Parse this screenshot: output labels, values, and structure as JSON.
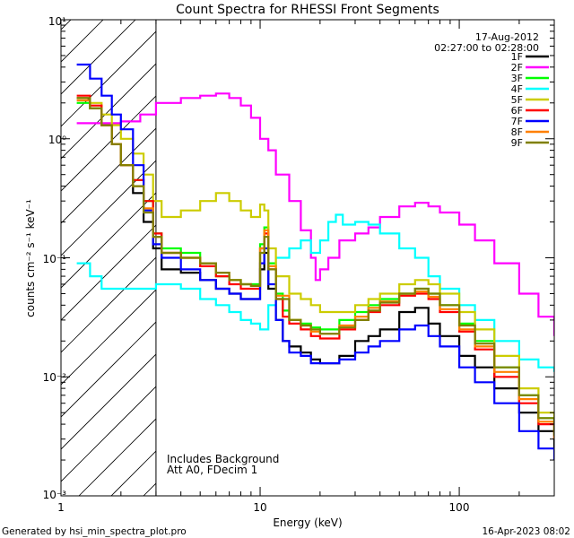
{
  "chart_data": {
    "type": "line",
    "title": "Count Spectra for RHESSI Front Segments",
    "xlabel": "Energy (keV)",
    "ylabel": "counts cm⁻² s⁻¹ keV⁻¹",
    "xscale": "log",
    "yscale": "log",
    "xlim": [
      1,
      300
    ],
    "ylim": [
      0.001,
      10
    ],
    "x_tick_labels": [
      "1",
      "10",
      "100"
    ],
    "y_tick_labels": [
      "10⁻³",
      "10⁻²",
      "10⁻¹",
      "10⁰",
      "10¹"
    ],
    "date": "17-Aug-2012",
    "time_range": "02:27:00 to 02:28:00",
    "notes": [
      "Includes Background",
      "Att A0, FDecim 1"
    ],
    "hatched_region": {
      "x_from": 1,
      "x_to": 3
    },
    "footer_left": "Generated by hsi_min_spectra_plot.pro",
    "footer_right": "16-Apr-2023 08:02",
    "series": [
      {
        "name": "1F",
        "color": "#000000",
        "x": [
          1.2,
          1.4,
          1.6,
          1.8,
          2.0,
          2.3,
          2.6,
          2.9,
          3.2,
          4,
          5,
          6,
          7,
          8,
          9,
          10,
          10.5,
          11,
          12,
          13,
          14,
          16,
          18,
          20,
          25,
          30,
          35,
          40,
          50,
          60,
          70,
          80,
          100,
          120,
          150,
          200,
          250,
          300
        ],
        "y": [
          2.2,
          1.8,
          1.3,
          0.9,
          0.6,
          0.35,
          0.2,
          0.12,
          0.08,
          0.075,
          0.065,
          0.055,
          0.05,
          0.045,
          0.045,
          0.08,
          0.11,
          0.055,
          0.03,
          0.02,
          0.018,
          0.016,
          0.014,
          0.013,
          0.015,
          0.02,
          0.022,
          0.025,
          0.035,
          0.038,
          0.028,
          0.022,
          0.015,
          0.012,
          0.008,
          0.005,
          0.0035,
          0.0025
        ]
      },
      {
        "name": "2F",
        "color": "#ff00ff",
        "x": [
          1.2,
          1.5,
          2,
          2.5,
          3,
          4,
          5,
          6,
          7,
          8,
          9,
          10,
          11,
          12,
          14,
          16,
          18,
          19,
          20,
          22,
          25,
          30,
          35,
          40,
          50,
          60,
          70,
          80,
          100,
          120,
          150,
          200,
          250,
          300
        ],
        "y": [
          1.35,
          1.35,
          1.4,
          1.6,
          2.0,
          2.2,
          2.3,
          2.4,
          2.2,
          1.9,
          1.5,
          1.0,
          0.8,
          0.5,
          0.3,
          0.17,
          0.1,
          0.065,
          0.08,
          0.1,
          0.14,
          0.16,
          0.18,
          0.22,
          0.27,
          0.29,
          0.27,
          0.24,
          0.19,
          0.14,
          0.09,
          0.05,
          0.032,
          0.022
        ]
      },
      {
        "name": "3F",
        "color": "#00ff00",
        "x": [
          1.2,
          1.4,
          1.6,
          1.8,
          2.0,
          2.3,
          2.6,
          2.9,
          3.2,
          4,
          5,
          6,
          7,
          8,
          9,
          10,
          10.5,
          11,
          12,
          13,
          14,
          16,
          18,
          20,
          25,
          30,
          35,
          40,
          50,
          60,
          70,
          80,
          100,
          120,
          150,
          200,
          250,
          300
        ],
        "y": [
          2.0,
          1.8,
          1.3,
          0.9,
          0.6,
          0.45,
          0.3,
          0.16,
          0.12,
          0.11,
          0.09,
          0.07,
          0.065,
          0.06,
          0.06,
          0.13,
          0.18,
          0.09,
          0.05,
          0.036,
          0.03,
          0.028,
          0.026,
          0.025,
          0.03,
          0.035,
          0.04,
          0.045,
          0.05,
          0.055,
          0.05,
          0.04,
          0.028,
          0.02,
          0.012,
          0.007,
          0.0045,
          0.0035
        ]
      },
      {
        "name": "4F",
        "color": "#00ffff",
        "x": [
          1.2,
          1.4,
          1.6,
          2,
          2.5,
          3,
          4,
          5,
          6,
          7,
          8,
          9,
          10,
          11,
          12,
          14,
          16,
          18,
          20,
          22,
          24,
          26,
          30,
          35,
          40,
          50,
          60,
          70,
          80,
          100,
          120,
          150,
          200,
          250,
          300
        ],
        "y": [
          0.09,
          0.07,
          0.055,
          0.055,
          0.055,
          0.06,
          0.055,
          0.045,
          0.04,
          0.035,
          0.03,
          0.028,
          0.025,
          0.04,
          0.1,
          0.12,
          0.14,
          0.11,
          0.14,
          0.2,
          0.23,
          0.19,
          0.2,
          0.19,
          0.16,
          0.12,
          0.1,
          0.07,
          0.055,
          0.04,
          0.03,
          0.02,
          0.014,
          0.012,
          0.011
        ]
      },
      {
        "name": "5F",
        "color": "#cccc00",
        "x": [
          1.2,
          1.4,
          1.6,
          1.8,
          2.0,
          2.3,
          2.6,
          2.9,
          3.2,
          4,
          5,
          6,
          7,
          8,
          9,
          10,
          10.5,
          11,
          12,
          14,
          16,
          18,
          20,
          25,
          30,
          35,
          40,
          50,
          60,
          70,
          80,
          100,
          120,
          150,
          200,
          250,
          300
        ],
        "y": [
          2.2,
          2.0,
          1.6,
          1.3,
          1.0,
          0.75,
          0.5,
          0.3,
          0.22,
          0.25,
          0.3,
          0.35,
          0.3,
          0.25,
          0.22,
          0.28,
          0.25,
          0.12,
          0.07,
          0.05,
          0.045,
          0.04,
          0.035,
          0.035,
          0.04,
          0.045,
          0.05,
          0.06,
          0.065,
          0.06,
          0.05,
          0.035,
          0.025,
          0.015,
          0.008,
          0.005,
          0.0035
        ]
      },
      {
        "name": "6F",
        "color": "#ff0000",
        "x": [
          1.2,
          1.4,
          1.6,
          1.8,
          2.0,
          2.3,
          2.6,
          2.9,
          3.2,
          4,
          5,
          6,
          7,
          8,
          9,
          10,
          10.5,
          11,
          12,
          13,
          14,
          16,
          18,
          20,
          25,
          30,
          35,
          40,
          50,
          60,
          70,
          80,
          100,
          120,
          150,
          200,
          250,
          300
        ],
        "y": [
          2.3,
          1.9,
          1.3,
          0.9,
          0.6,
          0.45,
          0.3,
          0.16,
          0.11,
          0.1,
          0.085,
          0.07,
          0.06,
          0.055,
          0.055,
          0.12,
          0.16,
          0.08,
          0.045,
          0.032,
          0.028,
          0.025,
          0.022,
          0.021,
          0.025,
          0.03,
          0.035,
          0.04,
          0.048,
          0.05,
          0.045,
          0.035,
          0.024,
          0.017,
          0.01,
          0.006,
          0.004,
          0.003
        ]
      },
      {
        "name": "7F",
        "color": "#0000ff",
        "x": [
          1.2,
          1.4,
          1.6,
          1.8,
          2.0,
          2.3,
          2.6,
          2.9,
          3.2,
          4,
          5,
          6,
          7,
          8,
          9,
          10,
          10.5,
          11,
          12,
          13,
          14,
          16,
          18,
          20,
          25,
          30,
          35,
          40,
          50,
          60,
          70,
          80,
          100,
          120,
          150,
          200,
          250,
          300
        ],
        "y": [
          4.2,
          3.2,
          2.3,
          1.6,
          1.2,
          0.6,
          0.25,
          0.13,
          0.1,
          0.08,
          0.065,
          0.055,
          0.05,
          0.045,
          0.045,
          0.09,
          0.12,
          0.06,
          0.03,
          0.02,
          0.016,
          0.015,
          0.013,
          0.013,
          0.014,
          0.016,
          0.018,
          0.02,
          0.025,
          0.027,
          0.022,
          0.018,
          0.012,
          0.009,
          0.006,
          0.0035,
          0.0025,
          0.002
        ]
      },
      {
        "name": "8F",
        "color": "#ff8000",
        "x": [
          1.2,
          1.4,
          1.6,
          1.8,
          2.0,
          2.3,
          2.6,
          2.9,
          3.2,
          4,
          5,
          6,
          7,
          8,
          9,
          10,
          10.5,
          11,
          12,
          14,
          16,
          18,
          20,
          25,
          30,
          35,
          40,
          50,
          60,
          70,
          80,
          100,
          120,
          150,
          200,
          250,
          300
        ],
        "y": [
          2.1,
          1.8,
          1.3,
          0.9,
          0.6,
          0.4,
          0.26,
          0.15,
          0.11,
          0.1,
          0.09,
          0.075,
          0.065,
          0.06,
          0.058,
          0.12,
          0.17,
          0.085,
          0.048,
          0.03,
          0.027,
          0.024,
          0.023,
          0.027,
          0.032,
          0.038,
          0.043,
          0.05,
          0.052,
          0.047,
          0.037,
          0.025,
          0.018,
          0.011,
          0.0065,
          0.0042,
          0.003
        ]
      },
      {
        "name": "9F",
        "color": "#808000",
        "x": [
          1.2,
          1.4,
          1.6,
          1.8,
          2.0,
          2.3,
          2.6,
          2.9,
          3.2,
          4,
          5,
          6,
          7,
          8,
          9,
          10,
          10.5,
          11,
          12,
          14,
          16,
          18,
          20,
          25,
          30,
          35,
          40,
          50,
          60,
          70,
          80,
          100,
          120,
          150,
          200,
          250,
          300
        ],
        "y": [
          2.2,
          1.8,
          1.3,
          0.9,
          0.6,
          0.4,
          0.24,
          0.15,
          0.11,
          0.1,
          0.09,
          0.075,
          0.065,
          0.06,
          0.058,
          0.11,
          0.15,
          0.08,
          0.045,
          0.03,
          0.027,
          0.025,
          0.023,
          0.026,
          0.03,
          0.036,
          0.042,
          0.05,
          0.055,
          0.05,
          0.04,
          0.027,
          0.019,
          0.012,
          0.007,
          0.0045,
          0.0032
        ]
      }
    ]
  }
}
